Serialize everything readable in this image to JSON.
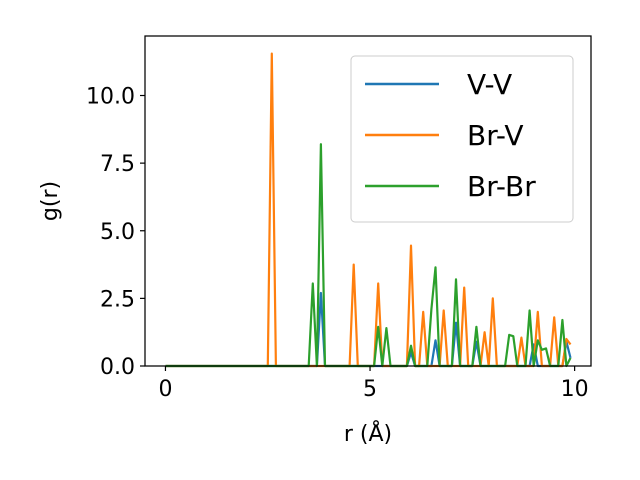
{
  "chart_data": {
    "type": "line",
    "xlabel": "r (Å)",
    "ylabel": "g(r)",
    "xlim": [
      -0.5,
      10.4
    ],
    "ylim": [
      0,
      12.2
    ],
    "x_ticks": [
      0,
      5,
      10
    ],
    "x_tick_labels": [
      "0",
      "5",
      "10"
    ],
    "y_ticks": [
      0,
      2.5,
      5,
      7.5,
      10
    ],
    "y_tick_labels": [
      "0.0",
      "2.5",
      "5.0",
      "7.5",
      "10.0"
    ],
    "grid": false,
    "legend_position": "top-right",
    "series": [
      {
        "name": "V-V",
        "color": "#1f77b4",
        "x": [
          0,
          3.5,
          3.6,
          3.7,
          3.8,
          3.9,
          4.0,
          5.9,
          6.0,
          6.1,
          6.5,
          6.6,
          6.7,
          7.0,
          7.1,
          7.2,
          7.5,
          7.6,
          7.7,
          8.9,
          9.0,
          9.1,
          9.7,
          9.8,
          9.9
        ],
        "values": [
          0,
          0,
          0,
          0,
          2.7,
          0,
          0,
          0,
          0.5,
          0,
          0,
          0.95,
          0,
          0,
          1.6,
          0,
          0,
          0.9,
          0,
          0,
          0.8,
          0,
          0,
          0.9,
          0.3
        ]
      },
      {
        "name": "Br-V",
        "color": "#ff7f0e",
        "x": [
          0,
          2.5,
          2.6,
          2.7,
          4.5,
          4.6,
          4.7,
          5.1,
          5.2,
          5.3,
          5.9,
          6.0,
          6.1,
          6.2,
          6.3,
          6.4,
          6.7,
          6.8,
          6.9,
          7.2,
          7.3,
          7.4,
          7.7,
          7.8,
          7.9,
          8.0,
          8.1,
          8.6,
          8.7,
          8.8,
          9.0,
          9.1,
          9.2,
          9.4,
          9.5,
          9.6,
          9.7,
          9.8,
          9.9
        ],
        "values": [
          0,
          0,
          11.55,
          0,
          0,
          3.75,
          0,
          0,
          3.05,
          0,
          0,
          4.45,
          0,
          0,
          2.0,
          0,
          0,
          2.05,
          0,
          0,
          2.9,
          0,
          0,
          1.25,
          0,
          2.5,
          0,
          0,
          1.05,
          0,
          0,
          2.0,
          0,
          0,
          1.8,
          0,
          0,
          1.0,
          0.8
        ]
      },
      {
        "name": "Br-Br",
        "color": "#2ca02c",
        "x": [
          0,
          3.5,
          3.6,
          3.7,
          3.8,
          3.9,
          5.1,
          5.2,
          5.3,
          5.4,
          5.5,
          5.9,
          6.0,
          6.1,
          6.4,
          6.5,
          6.6,
          6.7,
          7.0,
          7.1,
          7.2,
          7.5,
          7.6,
          7.7,
          8.3,
          8.4,
          8.5,
          8.6,
          8.8,
          8.9,
          9.0,
          9.1,
          9.2,
          9.3,
          9.4,
          9.5,
          9.6,
          9.7,
          9.8,
          9.9
        ],
        "values": [
          0,
          0,
          3.05,
          0,
          8.2,
          0,
          0,
          1.45,
          0,
          1.4,
          0,
          0,
          0.75,
          0,
          0,
          2.1,
          3.65,
          0,
          0,
          3.2,
          0,
          0,
          1.45,
          0,
          0,
          1.15,
          1.1,
          0,
          0,
          2.05,
          0,
          0.95,
          0.6,
          0.65,
          0,
          0,
          0,
          1.7,
          0,
          0.3
        ]
      }
    ]
  }
}
